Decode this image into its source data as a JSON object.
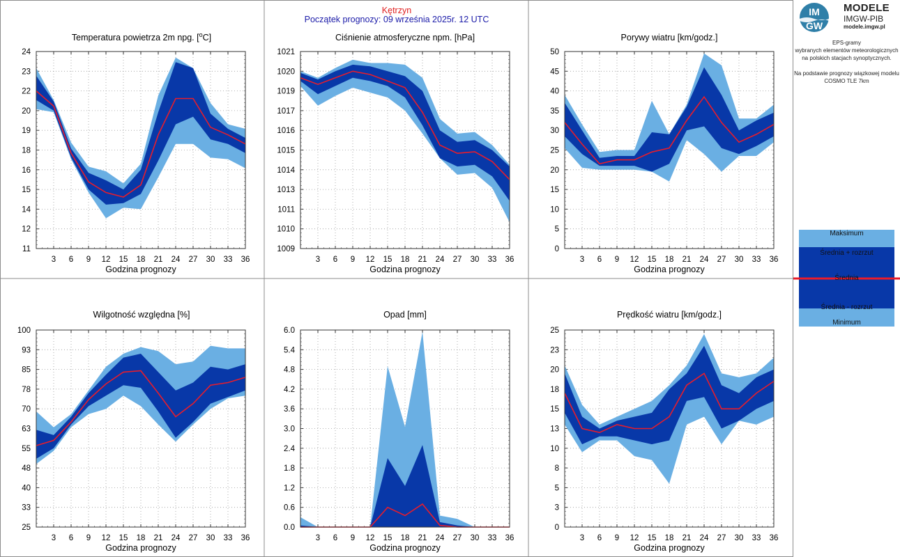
{
  "header": {
    "station": "Kętrzyn",
    "forecast_start": "Początek prognozy: 09 września 2025r. 12 UTC"
  },
  "sidebar": {
    "logo_top": "IM",
    "logo_bottom": "GW",
    "brand_line1": "MODELE",
    "brand_line2": "IMGW-PIB",
    "brand_url": "modele.imgw.pl",
    "description_lines": [
      "EPS-gramy",
      "wybranych elementów meteorologicznych",
      "na polskich stacjach  synoptycznych."
    ],
    "model_lines": [
      "Na podstawie prognozy wiązkowej modelu",
      "COSMO TLE 7km"
    ],
    "legend": {
      "max": "Maksimum",
      "mean_plus": "Średnia + rozrzut",
      "mean": "Średnia",
      "mean_minus": "Średnia - rozrzut",
      "min": "Minimum"
    }
  },
  "colors": {
    "envelope": "#6aafe3",
    "spread": "#0838a8",
    "mean": "#ea1c2a",
    "grid": "#9a9a9a",
    "border": "#8c8c8c"
  },
  "chart_data": [
    {
      "type": "area",
      "title": "Temperatura powietrza 2m npg. [oC]",
      "title_main": "Temperatura powietrza 2m npg. [",
      "title_sup": "o",
      "title_end": "C]",
      "xlabel": "Godzina prognozy",
      "x": [
        0,
        3,
        6,
        9,
        12,
        15,
        18,
        21,
        24,
        27,
        30,
        33,
        36
      ],
      "xticks": [
        "3",
        "6",
        "9",
        "12",
        "15",
        "18",
        "21",
        "24",
        "27",
        "30",
        "33",
        "36"
      ],
      "ylim": [
        11,
        24
      ],
      "yticks": [
        "11",
        "12",
        "14",
        "15",
        "16",
        "18",
        "19",
        "20",
        "22",
        "23",
        "24"
      ],
      "max": [
        22.9,
        20.8,
        18.0,
        16.4,
        16.1,
        15.3,
        16.6,
        21.1,
        23.6,
        22.9,
        20.6,
        19.2,
        18.9
      ],
      "mean_plus": [
        22.4,
        20.7,
        17.6,
        16.0,
        15.5,
        14.9,
        16.2,
        20.0,
        23.3,
        22.9,
        19.9,
        18.9,
        18.3
      ],
      "mean": [
        21.4,
        20.4,
        17.3,
        15.4,
        14.7,
        14.4,
        15.2,
        18.5,
        20.9,
        20.9,
        19.0,
        18.5,
        17.9
      ],
      "mean_minus": [
        20.8,
        20.1,
        17.0,
        14.9,
        13.9,
        14.0,
        14.6,
        16.8,
        19.2,
        19.7,
        18.2,
        17.9,
        17.3
      ],
      "min": [
        20.2,
        20.0,
        16.9,
        14.7,
        13.0,
        13.7,
        13.6,
        15.7,
        17.9,
        17.9,
        17.0,
        16.9,
        16.3
      ]
    },
    {
      "type": "area",
      "title": "Ciśnienie atmosferyczne npm. [hPa]",
      "xlabel": "Godzina prognozy",
      "x": [
        0,
        3,
        6,
        9,
        12,
        15,
        18,
        21,
        24,
        27,
        30,
        33,
        36
      ],
      "xticks": [
        "3",
        "6",
        "9",
        "12",
        "15",
        "18",
        "21",
        "24",
        "27",
        "30",
        "33",
        "36"
      ],
      "ylim": [
        1009,
        1021
      ],
      "yticks": [
        "1009",
        "1010",
        "1011",
        "1013",
        "1014",
        "1015",
        "1016",
        "1017",
        "1019",
        "1020",
        "1021"
      ],
      "max": [
        1019.8,
        1019.4,
        1020.0,
        1020.5,
        1020.3,
        1020.3,
        1020.2,
        1019.4,
        1016.9,
        1016.0,
        1016.1,
        1015.3,
        1014.1
      ],
      "mean_plus": [
        1019.7,
        1019.3,
        1019.8,
        1020.2,
        1020.1,
        1019.8,
        1019.5,
        1018.6,
        1016.2,
        1015.5,
        1015.6,
        1015.0,
        1014.0
      ],
      "mean": [
        1019.4,
        1019.0,
        1019.4,
        1019.8,
        1019.6,
        1019.2,
        1018.8,
        1017.3,
        1015.3,
        1014.8,
        1014.9,
        1014.3,
        1013.2
      ],
      "mean_minus": [
        1019.2,
        1018.4,
        1018.9,
        1019.4,
        1019.2,
        1018.9,
        1018.2,
        1016.5,
        1014.5,
        1014.0,
        1014.1,
        1013.4,
        1011.9
      ],
      "min": [
        1018.9,
        1017.7,
        1018.3,
        1018.8,
        1018.5,
        1018.2,
        1017.4,
        1016.0,
        1014.5,
        1013.5,
        1013.6,
        1012.7,
        1010.6
      ]
    },
    {
      "type": "area",
      "title": "Porywy wiatru [km/godz.]",
      "xlabel": "Godzina prognozy",
      "x": [
        0,
        3,
        6,
        9,
        12,
        15,
        18,
        21,
        24,
        27,
        30,
        33,
        36
      ],
      "xticks": [
        "3",
        "6",
        "9",
        "12",
        "15",
        "18",
        "21",
        "24",
        "27",
        "30",
        "33",
        "36"
      ],
      "ylim": [
        0,
        50
      ],
      "yticks": [
        "0",
        "5",
        "10",
        "15",
        "20",
        "25",
        "30",
        "35",
        "40",
        "45",
        "50"
      ],
      "max": [
        39,
        31.5,
        24.5,
        25,
        25,
        37.5,
        29,
        36.5,
        49.5,
        46.5,
        33,
        33,
        36.5
      ],
      "mean_plus": [
        37,
        30,
        23,
        23.5,
        23.5,
        29.5,
        29,
        36,
        46,
        39,
        30,
        32.5,
        34.5
      ],
      "mean": [
        32,
        26.5,
        21.5,
        22.5,
        22.5,
        24.5,
        25.5,
        32.5,
        38.5,
        32,
        27,
        29,
        31.5
      ],
      "mean_minus": [
        28.5,
        24,
        21,
        21,
        21,
        19.5,
        21.5,
        30,
        31,
        25.5,
        24,
        26,
        28.5
      ],
      "min": [
        25.5,
        20.5,
        20,
        20,
        20,
        19.5,
        17,
        27.5,
        24,
        19.5,
        23.5,
        23.5,
        27
      ]
    },
    {
      "type": "area",
      "title": "Wilgotność względna [%]",
      "xlabel": "Godzina prognozy",
      "x": [
        0,
        3,
        6,
        9,
        12,
        15,
        18,
        21,
        24,
        27,
        30,
        33,
        36
      ],
      "xticks": [
        "3",
        "6",
        "9",
        "12",
        "15",
        "18",
        "21",
        "24",
        "27",
        "30",
        "33",
        "36"
      ],
      "ylim": [
        25,
        100
      ],
      "yticks": [
        "25",
        "33",
        "40",
        "48",
        "55",
        "63",
        "70",
        "78",
        "85",
        "93",
        "100"
      ],
      "max": [
        69,
        63,
        68,
        77,
        86,
        91,
        93.5,
        92,
        87,
        88,
        94,
        93,
        93
      ],
      "mean_plus": [
        62,
        60,
        67,
        76,
        83,
        89.5,
        91,
        84,
        77,
        80,
        86,
        85,
        87
      ],
      "mean": [
        56,
        58,
        65,
        73.5,
        79.5,
        84,
        84.5,
        76,
        67,
        72,
        79,
        80,
        82
      ],
      "mean_minus": [
        51,
        55,
        64,
        71,
        75,
        79,
        78,
        69,
        59,
        65,
        72,
        74.5,
        77
      ],
      "min": [
        49,
        54,
        63,
        68,
        70,
        75,
        71,
        64,
        57.5,
        64,
        70,
        74,
        75
      ]
    },
    {
      "type": "area",
      "title": "Opad [mm]",
      "xlabel": "Godzina prognozy",
      "x": [
        0,
        3,
        6,
        9,
        12,
        15,
        18,
        21,
        24,
        27,
        30,
        33,
        36
      ],
      "xticks": [
        "3",
        "6",
        "9",
        "12",
        "15",
        "18",
        "21",
        "24",
        "27",
        "30",
        "33",
        "36"
      ],
      "ylim": [
        0,
        6
      ],
      "yticks": [
        "0.0",
        "0.6",
        "1.2",
        "1.8",
        "2.4",
        "3.0",
        "3.6",
        "4.2",
        "4.8",
        "5.4",
        "6.0"
      ],
      "max": [
        0.3,
        0,
        0,
        0,
        0,
        4.9,
        3.05,
        5.95,
        0.35,
        0.25,
        0,
        0,
        0
      ],
      "mean_plus": [
        0.05,
        0,
        0,
        0,
        0,
        2.1,
        1.25,
        2.5,
        0.15,
        0.05,
        0,
        0,
        0
      ],
      "mean": [
        0,
        0,
        0,
        0,
        0,
        0.6,
        0.35,
        0.7,
        0.05,
        0,
        0,
        0,
        0
      ],
      "mean_minus": [
        0,
        0,
        0,
        0,
        0,
        0,
        0,
        0,
        0,
        0,
        0,
        0,
        0
      ],
      "min": [
        0,
        0,
        0,
        0,
        0,
        0,
        0,
        0,
        0,
        0,
        0,
        0,
        0
      ]
    },
    {
      "type": "area",
      "title": "Prędkość wiatru [km/godz.]",
      "xlabel": "Godzina prognozy",
      "x": [
        0,
        3,
        6,
        9,
        12,
        15,
        18,
        21,
        24,
        27,
        30,
        33,
        36
      ],
      "xticks": [
        "3",
        "6",
        "9",
        "12",
        "15",
        "18",
        "21",
        "24",
        "27",
        "30",
        "33",
        "36"
      ],
      "ylim": [
        0,
        25
      ],
      "yticks": [
        "0",
        "3",
        "5",
        "8",
        "10",
        "13",
        "15",
        "18",
        "20",
        "23",
        "25"
      ],
      "max": [
        20.5,
        15.5,
        13,
        14,
        15,
        16,
        18,
        20.5,
        24.5,
        19.5,
        19,
        19.5,
        21.5
      ],
      "mean_plus": [
        19.5,
        14,
        12.5,
        13.5,
        14,
        14.5,
        17.5,
        19.5,
        23,
        18,
        17,
        19,
        20
      ],
      "mean": [
        17,
        12.5,
        12,
        13,
        12.5,
        12.5,
        14,
        18,
        19.5,
        15,
        15,
        17,
        18.5
      ],
      "mean_minus": [
        14.5,
        10.5,
        11.5,
        11.5,
        11,
        10.5,
        11,
        16,
        16.5,
        12.5,
        13.5,
        15,
        16
      ],
      "min": [
        13,
        9.5,
        11,
        11,
        9,
        8.5,
        5.5,
        13,
        14,
        10.5,
        13.5,
        13,
        14
      ]
    }
  ]
}
